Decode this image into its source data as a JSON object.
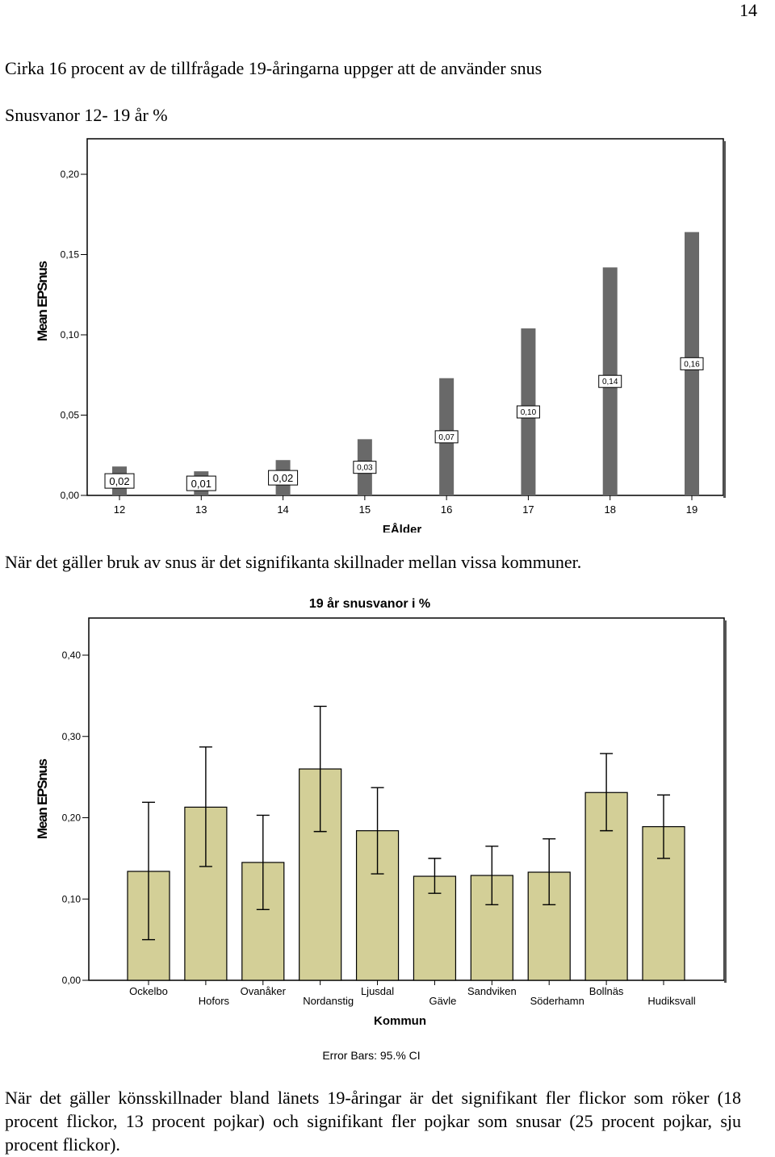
{
  "page_number": "14",
  "intro_text": "Cirka 16 procent av de tillfrågade 19-åringarna uppger att de använder snus",
  "chart1_heading": "Snusvanor 12- 19 år %",
  "middle_text": "När det gäller bruk av snus är det signifikanta skillnader mellan vissa kommuner.",
  "closing_text": "När det gäller könsskillnader bland länets 19-åringar är det signifikant fler flickor som röker (18 procent flickor, 13 procent pojkar) och signifikant fler pojkar som snusar (25 procent  pojkar, sju procent flickor).",
  "colors": {
    "bar1": "#696969",
    "bar2": "#d3cf97",
    "frame": "#000000"
  },
  "chart_data": [
    {
      "type": "bar",
      "title": "",
      "xlabel": "EÅlder",
      "ylabel": "Mean EPSnus",
      "ylim": [
        0,
        0.21
      ],
      "yticks": [
        "0,00",
        "0,05",
        "0,10",
        "0,15",
        "0,20"
      ],
      "categories": [
        "12",
        "13",
        "14",
        "15",
        "16",
        "17",
        "18",
        "19"
      ],
      "values": [
        0.018,
        0.015,
        0.022,
        0.035,
        0.073,
        0.104,
        0.142,
        0.164
      ],
      "data_labels": [
        "0,02",
        "0,01",
        "0,02",
        "0,03",
        "0,07",
        "0,10",
        "0,14",
        "0,16"
      ],
      "grid": false,
      "legend": "none"
    },
    {
      "type": "bar",
      "title": "19 år snusvanor i %",
      "xlabel": "Kommun",
      "ylabel": "Mean EPSnus",
      "ylim": [
        0,
        0.44
      ],
      "yticks": [
        "0,00",
        "0,10",
        "0,20",
        "0,30",
        "0,40"
      ],
      "categories": [
        "Ockelbo",
        "Hofors",
        "Ovanåker",
        "Nordanstig",
        "Ljusdal",
        "Gävle",
        "Sandviken",
        "Söderhamn",
        "Bollnäs",
        "Hudiksvall"
      ],
      "values": [
        0.134,
        0.213,
        0.145,
        0.26,
        0.184,
        0.128,
        0.129,
        0.133,
        0.231,
        0.189
      ],
      "ci_low": [
        0.05,
        0.14,
        0.087,
        0.183,
        0.131,
        0.107,
        0.093,
        0.093,
        0.184,
        0.15
      ],
      "ci_high": [
        0.219,
        0.287,
        0.203,
        0.337,
        0.237,
        0.15,
        0.165,
        0.174,
        0.279,
        0.228
      ],
      "footnote": "Error Bars: 95.% CI",
      "grid": false,
      "legend": "none"
    }
  ]
}
